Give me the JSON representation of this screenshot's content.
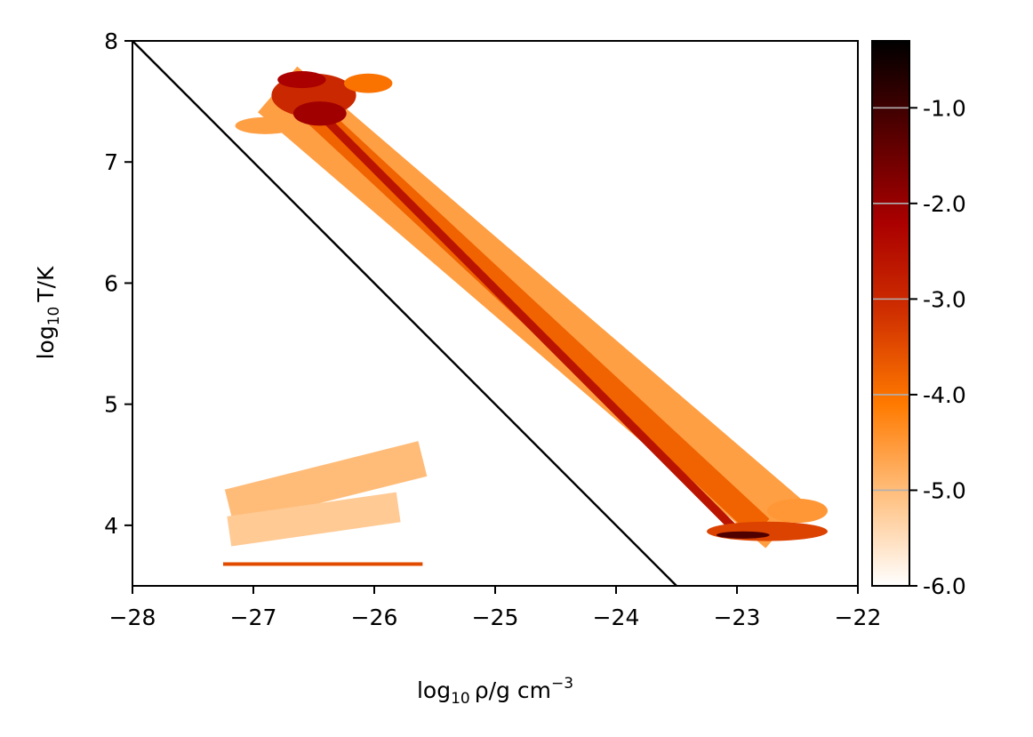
{
  "chart_data": {
    "type": "heatmap",
    "title": "",
    "xlabel": {
      "base": "log",
      "sub": "10",
      "rest": "ρ/g cm",
      "sup": "−3"
    },
    "ylabel": {
      "base": "log",
      "sub": "10",
      "rest": "T/K"
    },
    "xlim": [
      -28,
      -22
    ],
    "ylim": [
      3.5,
      8
    ],
    "x_ticks": [
      {
        "value": -28,
        "label": "−28"
      },
      {
        "value": -27,
        "label": "−27"
      },
      {
        "value": -26,
        "label": "−26"
      },
      {
        "value": -25,
        "label": "−25"
      },
      {
        "value": -24,
        "label": "−24"
      },
      {
        "value": -23,
        "label": "−23"
      },
      {
        "value": -22,
        "label": "−22"
      }
    ],
    "y_ticks": [
      {
        "value": 4,
        "label": "4"
      },
      {
        "value": 5,
        "label": "5"
      },
      {
        "value": 6,
        "label": "6"
      },
      {
        "value": 7,
        "label": "7"
      },
      {
        "value": 8,
        "label": "8"
      }
    ],
    "reference_line": {
      "x": [
        -28,
        -23.5
      ],
      "y": [
        8,
        3.5
      ],
      "color": "#000000"
    },
    "colorbar": {
      "range": [
        -6.0,
        -0.3
      ],
      "ticks": [
        {
          "value": -6.0,
          "label": "-6.0"
        },
        {
          "value": -5.0,
          "label": "-5.0"
        },
        {
          "value": -4.0,
          "label": "-4.0"
        },
        {
          "value": -3.0,
          "label": "-3.0"
        },
        {
          "value": -2.0,
          "label": "-2.0"
        },
        {
          "value": -1.0,
          "label": "-1.0"
        }
      ],
      "colormap": "gist_heat_r",
      "colormap_stops": [
        "#ffffff",
        "#ffc080",
        "#ff7a00",
        "#d03000",
        "#aa0000",
        "#550000",
        "#000000"
      ],
      "gridline_color": "#b0b0b0"
    },
    "regions": [
      {
        "shape": "band",
        "x0": -26.8,
        "y0": 7.6,
        "x1": -22.6,
        "y1": 4.0,
        "width": 0.5,
        "level": -4.6
      },
      {
        "shape": "band",
        "x0": -26.6,
        "y0": 7.5,
        "x1": -22.8,
        "y1": 3.98,
        "width": 0.2,
        "level": -3.8
      },
      {
        "shape": "band",
        "x0": -26.5,
        "y0": 7.45,
        "x1": -23.0,
        "y1": 3.95,
        "width": 0.07,
        "level": -2.6
      },
      {
        "shape": "blob",
        "x": -26.5,
        "y": 7.55,
        "rx": 0.35,
        "ry": 0.18,
        "level": -3.0
      },
      {
        "shape": "blob",
        "x": -26.6,
        "y": 7.68,
        "rx": 0.2,
        "ry": 0.07,
        "level": -2.2
      },
      {
        "shape": "blob",
        "x": -26.05,
        "y": 7.65,
        "rx": 0.2,
        "ry": 0.08,
        "level": -4.0
      },
      {
        "shape": "blob",
        "x": -26.45,
        "y": 7.4,
        "rx": 0.22,
        "ry": 0.1,
        "level": -2.1
      },
      {
        "shape": "blob",
        "x": -26.9,
        "y": 7.3,
        "rx": 0.25,
        "ry": 0.07,
        "level": -4.6
      },
      {
        "shape": "blob",
        "x": -22.75,
        "y": 3.95,
        "rx": 0.5,
        "ry": 0.08,
        "level": -3.4
      },
      {
        "shape": "blob",
        "x": -22.95,
        "y": 3.92,
        "rx": 0.22,
        "ry": 0.03,
        "level": -1.2
      },
      {
        "shape": "blob",
        "x": -22.5,
        "y": 4.12,
        "rx": 0.25,
        "ry": 0.1,
        "level": -4.5
      },
      {
        "shape": "band",
        "x0": -27.2,
        "y0": 4.15,
        "x1": -25.6,
        "y1": 4.55,
        "width": 0.3,
        "level": -5.0
      },
      {
        "shape": "band",
        "x0": -27.2,
        "y0": 3.95,
        "x1": -25.8,
        "y1": 4.15,
        "width": 0.25,
        "level": -5.2
      },
      {
        "shape": "band",
        "x0": -27.25,
        "y0": 3.68,
        "x1": -25.6,
        "y1": 3.68,
        "width": 0.02,
        "level": -3.5
      }
    ]
  }
}
